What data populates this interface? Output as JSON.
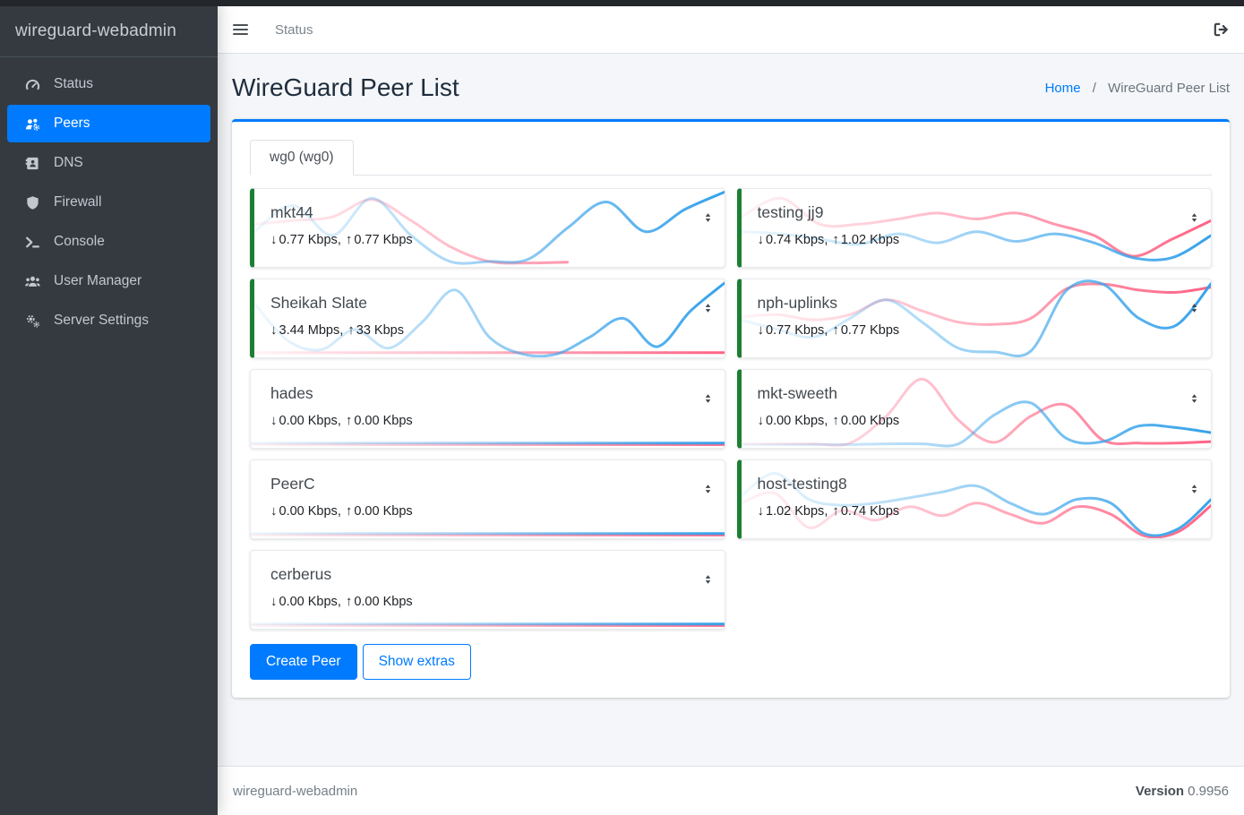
{
  "sidebar": {
    "brand": "wireguard-webadmin",
    "items": [
      {
        "label": "Status",
        "icon": "tachometer-icon",
        "active": false
      },
      {
        "label": "Peers",
        "icon": "users-gear-icon",
        "active": true
      },
      {
        "label": "DNS",
        "icon": "address-book-icon",
        "active": false
      },
      {
        "label": "Firewall",
        "icon": "shield-icon",
        "active": false
      },
      {
        "label": "Console",
        "icon": "terminal-icon",
        "active": false
      },
      {
        "label": "User Manager",
        "icon": "users-icon",
        "active": false
      },
      {
        "label": "Server Settings",
        "icon": "gears-icon",
        "active": false
      }
    ]
  },
  "topbar": {
    "status_link": "Status"
  },
  "page": {
    "title": "WireGuard Peer List",
    "breadcrumb": {
      "home": "Home",
      "separator": "/",
      "current": "WireGuard Peer List"
    }
  },
  "tabs": [
    {
      "label": "wg0 (wg0)",
      "active": true
    }
  ],
  "labels": {
    "stats_separator": ",",
    "down_arrow_glyph": "↓",
    "up_arrow_glyph": "↑"
  },
  "buttons": {
    "create_peer": "Create Peer",
    "show_extras": "Show extras"
  },
  "footer": {
    "brand": "wireguard-webadmin",
    "version_label": "Version",
    "version_value": "0.9956"
  },
  "colors": {
    "accent": "#007bff",
    "sidebar_bg": "#343a40",
    "online_green": "#1e7e34",
    "chart_blue": "#36a2eb",
    "chart_pink": "#ff6384",
    "content_bg": "#f4f6f9"
  },
  "chart_data": {
    "type": "line",
    "note": "per-peer traffic sparklines, values are relative throughput 0-100, no axes shown"
  },
  "peers": [
    {
      "name": "mkt44",
      "down": "0.77 Kbps",
      "up": "0.77 Kbps",
      "online": true,
      "spark": {
        "blue": [
          45,
          80,
          40,
          90,
          40,
          5,
          5,
          8,
          50,
          85,
          45,
          75,
          98
        ],
        "pink": [
          55,
          60,
          65,
          88,
          60,
          25,
          5,
          3,
          4,
          null,
          null,
          null,
          null
        ]
      }
    },
    {
      "name": "testing jj9",
      "down": "0.74 Kbps",
      "up": "1.02 Kbps",
      "online": true,
      "spark": {
        "blue": [
          45,
          42,
          35,
          28,
          42,
          30,
          45,
          32,
          42,
          30,
          10,
          10,
          40
        ],
        "pink": [
          65,
          90,
          55,
          55,
          62,
          70,
          62,
          70,
          55,
          40,
          12,
          35,
          60
        ]
      }
    },
    {
      "name": "Sheikah Slate",
      "down": "3.44 Mbps",
      "up": "33 Kbps",
      "online": true,
      "spark": {
        "blue": [
          70,
          20,
          8,
          35,
          10,
          45,
          88,
          25,
          2,
          2,
          25,
          50,
          12,
          60,
          97
        ],
        "pink": [
          4,
          4,
          4,
          4,
          4,
          4,
          4,
          4,
          4,
          4,
          4,
          4,
          4,
          4,
          4
        ]
      }
    },
    {
      "name": "nph-uplinks",
      "down": "0.77 Kbps",
      "up": "0.77 Kbps",
      "online": true,
      "spark": {
        "blue": [
          48,
          35,
          25,
          50,
          75,
          45,
          10,
          5,
          6,
          88,
          96,
          50,
          40,
          97
        ],
        "pink": [
          52,
          55,
          48,
          55,
          75,
          60,
          45,
          42,
          50,
          90,
          96,
          88,
          85,
          92
        ]
      }
    },
    {
      "name": "hades",
      "down": "0.00 Kbps",
      "up": "0.00 Kbps",
      "online": false,
      "spark": {
        "blue": [
          4,
          4,
          4,
          4,
          4,
          4,
          4,
          4,
          4,
          4,
          4,
          4,
          4
        ],
        "pink": [
          2,
          2,
          2,
          2,
          2,
          2,
          2,
          2,
          2,
          2,
          2,
          2,
          2
        ]
      }
    },
    {
      "name": "mkt-sweeth",
      "down": "0.00 Kbps",
      "up": "0.00 Kbps",
      "online": true,
      "spark": {
        "blue": [
          2,
          2,
          2,
          2,
          3,
          3,
          3,
          42,
          58,
          10,
          6,
          27,
          25,
          18
        ],
        "pink": [
          3,
          3,
          3,
          4,
          40,
          90,
          35,
          5,
          40,
          55,
          8,
          4,
          4,
          6
        ]
      }
    },
    {
      "name": "PeerC",
      "down": "0.00 Kbps",
      "up": "0.00 Kbps",
      "online": false,
      "spark": {
        "blue": [
          4,
          4,
          4,
          4,
          4,
          4,
          4,
          4,
          4,
          4,
          4,
          4,
          4
        ],
        "pink": [
          2,
          2,
          2,
          2,
          2,
          2,
          2,
          2,
          2,
          2,
          2,
          2,
          2
        ]
      }
    },
    {
      "name": "host-testing8",
      "down": "1.02 Kbps",
      "up": "0.74 Kbps",
      "online": true,
      "spark": {
        "blue": [
          55,
          85,
          50,
          42,
          45,
          52,
          60,
          68,
          45,
          30,
          50,
          45,
          4,
          10,
          50
        ],
        "pink": [
          45,
          58,
          12,
          35,
          22,
          40,
          28,
          45,
          30,
          18,
          40,
          30,
          1,
          6,
          42
        ]
      }
    },
    {
      "name": "cerberus",
      "down": "0.00 Kbps",
      "up": "0.00 Kbps",
      "online": false,
      "spark": {
        "blue": [
          4,
          4,
          4,
          4,
          4,
          4,
          4,
          4,
          4,
          4,
          4,
          4,
          4
        ],
        "pink": [
          2,
          2,
          2,
          2,
          2,
          2,
          2,
          2,
          2,
          2,
          2,
          2,
          2
        ]
      }
    }
  ]
}
